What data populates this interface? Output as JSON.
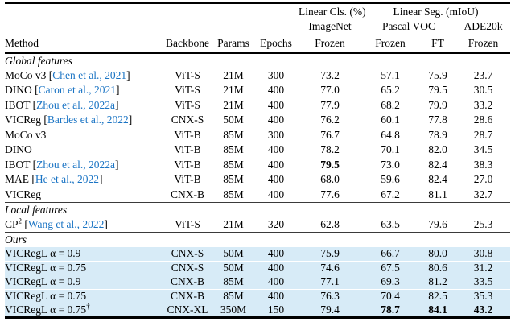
{
  "colors": {
    "citation_blue": "#1a74c4",
    "highlight_row": "#d7ebf7",
    "rule_black": "#000000"
  },
  "table": {
    "header": {
      "group_cls": "Linear Cls. (%)",
      "group_seg": "Linear Seg. (mIoU)",
      "sub_imagenet": "ImageNet",
      "sub_voc": "Pascal VOC",
      "sub_ade": "ADE20k",
      "col_method": "Method",
      "col_backbone": "Backbone",
      "col_params": "Params",
      "col_epochs": "Epochs",
      "col_frozen": "Frozen",
      "col_ft": "FT"
    },
    "sections": [
      {
        "label": "Global features",
        "highlight": false,
        "rows": [
          {
            "method": {
              "name": "MoCo v3",
              "sup": "",
              "cite": "Chen et al., 2021",
              "post": ""
            },
            "backbone": "ViT-S",
            "params": "21M",
            "epochs": "300",
            "values": [
              "73.2",
              "57.1",
              "75.9",
              "23.7"
            ],
            "bold": []
          },
          {
            "method": {
              "name": "DINO",
              "sup": "",
              "cite": "Caron et al., 2021",
              "post": ""
            },
            "backbone": "ViT-S",
            "params": "21M",
            "epochs": "400",
            "values": [
              "77.0",
              "65.2",
              "79.5",
              "30.5"
            ],
            "bold": []
          },
          {
            "method": {
              "name": "IBOT",
              "sup": "",
              "cite": "Zhou et al., 2022a",
              "post": ""
            },
            "backbone": "ViT-S",
            "params": "21M",
            "epochs": "400",
            "values": [
              "77.9",
              "68.2",
              "79.9",
              "33.2"
            ],
            "bold": []
          },
          {
            "method": {
              "name": "VICReg",
              "sup": "",
              "cite": "Bardes et al., 2022",
              "post": ""
            },
            "backbone": "CNX-S",
            "params": "50M",
            "epochs": "400",
            "values": [
              "76.2",
              "60.1",
              "77.8",
              "28.6"
            ],
            "bold": []
          },
          {
            "method": {
              "name": "MoCo v3",
              "sup": "",
              "cite": "",
              "post": ""
            },
            "backbone": "ViT-B",
            "params": "85M",
            "epochs": "300",
            "values": [
              "76.7",
              "64.8",
              "78.9",
              "28.7"
            ],
            "bold": []
          },
          {
            "method": {
              "name": "DINO",
              "sup": "",
              "cite": "",
              "post": ""
            },
            "backbone": "ViT-B",
            "params": "85M",
            "epochs": "400",
            "values": [
              "78.2",
              "70.1",
              "82.0",
              "34.5"
            ],
            "bold": []
          },
          {
            "method": {
              "name": "IBOT",
              "sup": "",
              "cite": "Zhou et al., 2022a",
              "post": ""
            },
            "backbone": "ViT-B",
            "params": "85M",
            "epochs": "400",
            "values": [
              "79.5",
              "73.0",
              "82.4",
              "38.3"
            ],
            "bold": [
              0
            ]
          },
          {
            "method": {
              "name": "MAE",
              "sup": "",
              "cite": "He et al., 2022",
              "post": ""
            },
            "backbone": "ViT-B",
            "params": "85M",
            "epochs": "400",
            "values": [
              "68.0",
              "59.6",
              "82.4",
              "27.0"
            ],
            "bold": []
          },
          {
            "method": {
              "name": "VICReg",
              "sup": "",
              "cite": "",
              "post": ""
            },
            "backbone": "CNX-B",
            "params": "85M",
            "epochs": "400",
            "values": [
              "77.6",
              "67.2",
              "81.1",
              "32.7"
            ],
            "bold": []
          }
        ]
      },
      {
        "label": "Local features",
        "highlight": false,
        "rows": [
          {
            "method": {
              "name": "CP",
              "sup": "2",
              "cite": "Wang et al., 2022",
              "post": ""
            },
            "backbone": "ViT-S",
            "params": "21M",
            "epochs": "320",
            "values": [
              "62.8",
              "63.5",
              "79.6",
              "25.3"
            ],
            "bold": []
          }
        ]
      },
      {
        "label": "Ours",
        "highlight": true,
        "rows": [
          {
            "method": {
              "name": "VICRegL α = 0.9",
              "sup": "",
              "cite": "",
              "post": ""
            },
            "backbone": "CNX-S",
            "params": "50M",
            "epochs": "400",
            "values": [
              "75.9",
              "66.7",
              "80.0",
              "30.8"
            ],
            "bold": []
          },
          {
            "method": {
              "name": "VICRegL α = 0.75",
              "sup": "",
              "cite": "",
              "post": ""
            },
            "backbone": "CNX-S",
            "params": "50M",
            "epochs": "400",
            "values": [
              "74.6",
              "67.5",
              "80.6",
              "31.2"
            ],
            "bold": []
          },
          {
            "method": {
              "name": "VICRegL α = 0.9",
              "sup": "",
              "cite": "",
              "post": ""
            },
            "backbone": "CNX-B",
            "params": "85M",
            "epochs": "400",
            "values": [
              "77.1",
              "69.3",
              "81.2",
              "33.5"
            ],
            "bold": []
          },
          {
            "method": {
              "name": "VICRegL α = 0.75",
              "sup": "",
              "cite": "",
              "post": ""
            },
            "backbone": "CNX-B",
            "params": "85M",
            "epochs": "400",
            "values": [
              "76.3",
              "70.4",
              "82.5",
              "35.3"
            ],
            "bold": []
          },
          {
            "method": {
              "name": "VICRegL α = 0.75",
              "sup": "",
              "cite": "",
              "post": "†"
            },
            "backbone": "CNX-XL",
            "params": "350M",
            "epochs": "150",
            "values": [
              "79.4",
              "78.7",
              "84.1",
              "43.2"
            ],
            "bold": [
              1,
              2,
              3
            ]
          }
        ]
      }
    ]
  }
}
